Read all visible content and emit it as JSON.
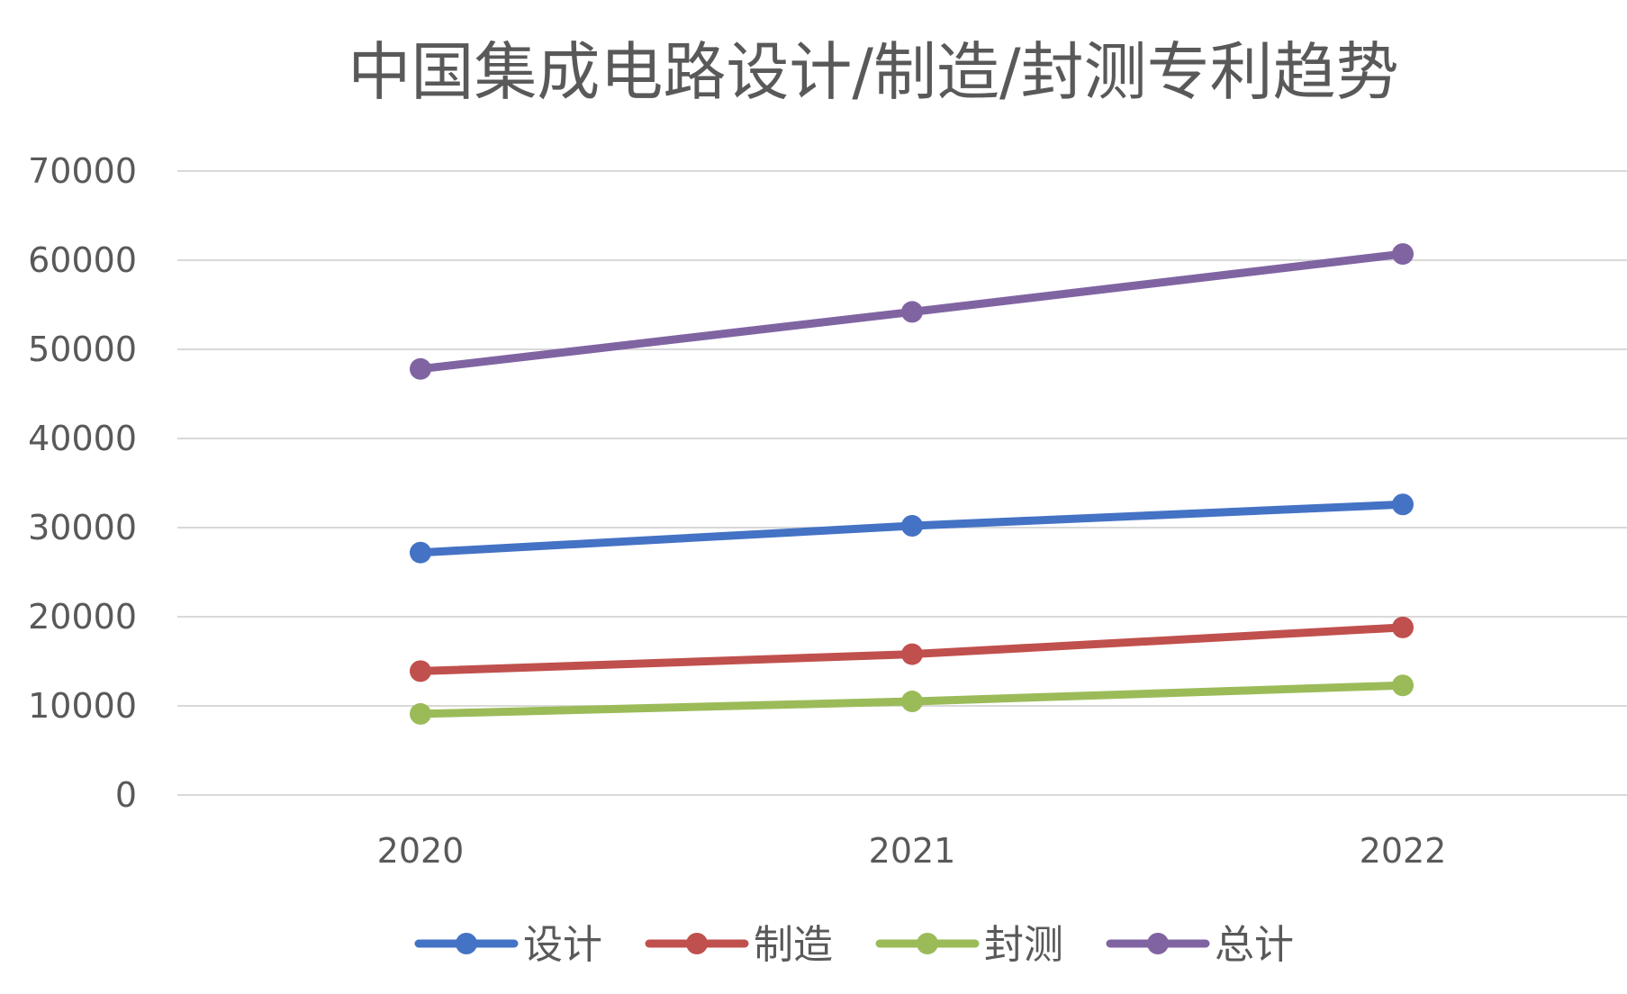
{
  "chart_data": {
    "type": "line",
    "title": "中国集成电路设计/制造/封测专利趋势",
    "categories": [
      "2020",
      "2021",
      "2022"
    ],
    "series": [
      {
        "name": "设计",
        "color": "#4472C4",
        "values": [
          27200,
          30200,
          32600
        ]
      },
      {
        "name": "制造",
        "color": "#C0504D",
        "values": [
          13900,
          15800,
          18800
        ]
      },
      {
        "name": "封测",
        "color": "#9BBB59",
        "values": [
          9100,
          10500,
          12300
        ]
      },
      {
        "name": "总计",
        "color": "#8064A2",
        "values": [
          47800,
          54200,
          60700
        ]
      }
    ],
    "ylim": [
      0,
      70000
    ],
    "yticks": [
      0,
      10000,
      20000,
      30000,
      40000,
      50000,
      60000,
      70000
    ],
    "xlabel": "",
    "ylabel": "",
    "grid": true,
    "legend": "bottom"
  }
}
